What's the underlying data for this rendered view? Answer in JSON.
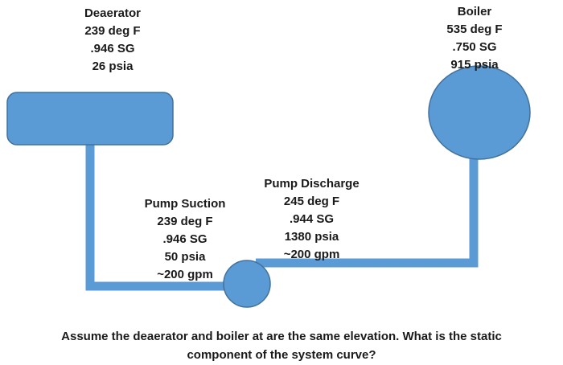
{
  "colors": {
    "fill": "#5b9bd5",
    "stroke": "#41719c",
    "text": "#1a1a1a"
  },
  "deaerator": {
    "name": "Deaerator",
    "temperature": "239 deg F",
    "specific_gravity": ".946 SG",
    "pressure": "26 psia"
  },
  "boiler": {
    "name": "Boiler",
    "temperature": "535 deg F",
    "specific_gravity": ".750 SG",
    "pressure": "915 psia"
  },
  "pump_suction": {
    "name": "Pump Suction",
    "temperature": "239 deg F",
    "specific_gravity": ".946 SG",
    "pressure": "50 psia",
    "flow": "~200 gpm"
  },
  "pump_discharge": {
    "name": "Pump Discharge",
    "temperature": "245 deg F",
    "specific_gravity": ".944 SG",
    "pressure": "1380 psia",
    "flow": "~200 gpm"
  },
  "question": {
    "line1": "Assume the deaerator and boiler at are the same elevation.  What is the static",
    "line2": "component of the system curve?"
  }
}
